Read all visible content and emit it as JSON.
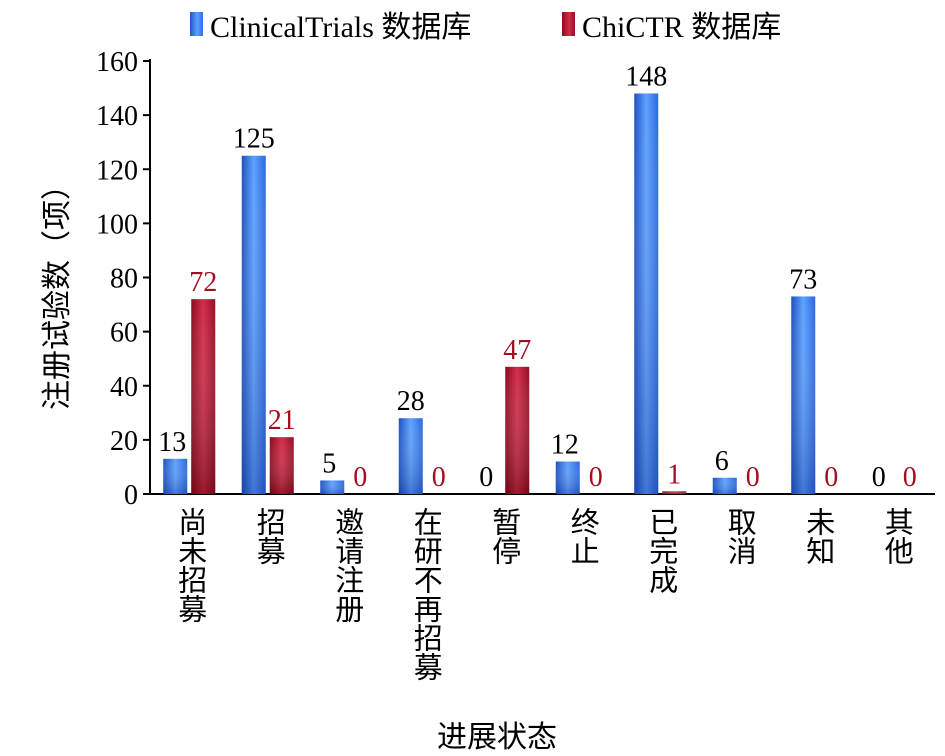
{
  "colors": {
    "clinicaltrials": "#3a7ef0",
    "chictr": "#b01a30",
    "chictr_label": "#a01020"
  },
  "legend": {
    "series1": "ClinicalTrials 数据库",
    "series2": "ChiCTR 数据库"
  },
  "chart_data": {
    "type": "bar",
    "title": "",
    "xlabel": "进展状态",
    "ylabel": "注册试验数（项）",
    "ylim": [
      0,
      160
    ],
    "yticks": [
      "0",
      "20",
      "40",
      "60",
      "80",
      "100",
      "120",
      "140",
      "160"
    ],
    "categories": [
      "尚未招募",
      "招募",
      "邀请注册",
      "在研不再招募",
      "暂停",
      "终止",
      "已完成",
      "取消",
      "未知",
      "其他"
    ],
    "series": [
      {
        "name": "ClinicalTrials 数据库",
        "values": [
          13,
          125,
          5,
          28,
          0,
          12,
          148,
          6,
          73,
          0
        ]
      },
      {
        "name": "ChiCTR 数据库",
        "values": [
          72,
          21,
          0,
          0,
          47,
          0,
          1,
          0,
          0,
          0
        ]
      }
    ],
    "grid": false,
    "legend_position": "top"
  }
}
